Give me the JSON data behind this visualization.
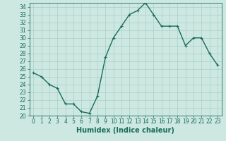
{
  "x": [
    0,
    1,
    2,
    3,
    4,
    5,
    6,
    7,
    8,
    9,
    10,
    11,
    12,
    13,
    14,
    15,
    16,
    17,
    18,
    19,
    20,
    21,
    22,
    23
  ],
  "y": [
    25.5,
    25.0,
    24.0,
    23.5,
    21.5,
    21.5,
    20.5,
    20.3,
    22.5,
    27.5,
    30.0,
    31.5,
    33.0,
    33.5,
    34.5,
    33.0,
    31.5,
    31.5,
    31.5,
    29.0,
    30.0,
    30.0,
    28.0,
    26.5
  ],
  "line_color": "#1a6b5a",
  "marker": "+",
  "bg_color": "#cce8e0",
  "grid_color": "#aacfc5",
  "xlabel": "Humidex (Indice chaleur)",
  "xlim": [
    -0.5,
    23.5
  ],
  "ylim": [
    20,
    34.5
  ],
  "yticks": [
    20,
    21,
    22,
    23,
    24,
    25,
    26,
    27,
    28,
    29,
    30,
    31,
    32,
    33,
    34
  ],
  "xticks": [
    0,
    1,
    2,
    3,
    4,
    5,
    6,
    7,
    8,
    9,
    10,
    11,
    12,
    13,
    14,
    15,
    16,
    17,
    18,
    19,
    20,
    21,
    22,
    23
  ],
  "tick_color": "#1a6b5a",
  "label_fontsize": 7,
  "tick_fontsize": 5.5,
  "linewidth": 1.0,
  "markersize": 3,
  "markeredgewidth": 0.8
}
